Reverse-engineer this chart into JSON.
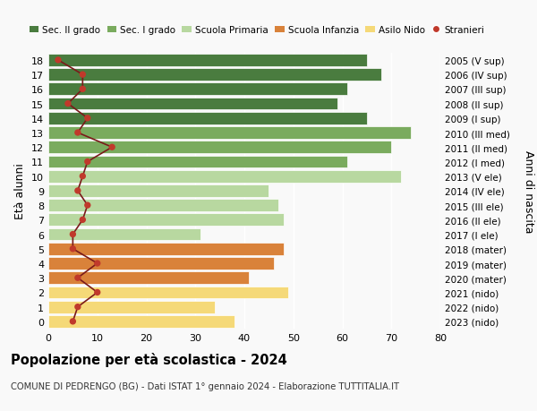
{
  "ages": [
    18,
    17,
    16,
    15,
    14,
    13,
    12,
    11,
    10,
    9,
    8,
    7,
    6,
    5,
    4,
    3,
    2,
    1,
    0
  ],
  "bar_values": [
    65,
    68,
    61,
    59,
    65,
    74,
    70,
    61,
    72,
    45,
    47,
    48,
    31,
    48,
    46,
    41,
    49,
    34,
    38
  ],
  "stranieri_values": [
    2,
    7,
    7,
    4,
    8,
    6,
    13,
    8,
    7,
    6,
    8,
    7,
    5,
    5,
    10,
    6,
    10,
    6,
    5
  ],
  "right_labels": [
    "2005 (V sup)",
    "2006 (IV sup)",
    "2007 (III sup)",
    "2008 (II sup)",
    "2009 (I sup)",
    "2010 (III med)",
    "2011 (II med)",
    "2012 (I med)",
    "2013 (V ele)",
    "2014 (IV ele)",
    "2015 (III ele)",
    "2016 (II ele)",
    "2017 (I ele)",
    "2018 (mater)",
    "2019 (mater)",
    "2020 (mater)",
    "2021 (nido)",
    "2022 (nido)",
    "2023 (nido)"
  ],
  "bar_colors": [
    "#4a7c3f",
    "#4a7c3f",
    "#4a7c3f",
    "#4a7c3f",
    "#4a7c3f",
    "#7aab5e",
    "#7aab5e",
    "#7aab5e",
    "#b8d8a0",
    "#b8d8a0",
    "#b8d8a0",
    "#b8d8a0",
    "#b8d8a0",
    "#d9823a",
    "#d9823a",
    "#d9823a",
    "#f5d978",
    "#f5d978",
    "#f5d978"
  ],
  "legend_colors": [
    "#4a7c3f",
    "#7aab5e",
    "#b8d8a0",
    "#d9823a",
    "#f5d978",
    "#c0392b"
  ],
  "legend_labels": [
    "Sec. II grado",
    "Sec. I grado",
    "Scuola Primaria",
    "Scuola Infanzia",
    "Asilo Nido",
    "Stranieri"
  ],
  "ylabel": "Età alunni",
  "right_ylabel": "Anni di nascita",
  "title": "Popolazione per età scolastica - 2024",
  "subtitle": "COMUNE DI PEDRENGO (BG) - Dati ISTAT 1° gennaio 2024 - Elaborazione TUTTITALIA.IT",
  "xlim": [
    0,
    80
  ],
  "xticks": [
    0,
    10,
    20,
    30,
    40,
    50,
    60,
    70,
    80
  ],
  "bg_color": "#f9f9f9",
  "stranieri_color": "#c0392b",
  "stranieri_line_color": "#7a1a1a"
}
